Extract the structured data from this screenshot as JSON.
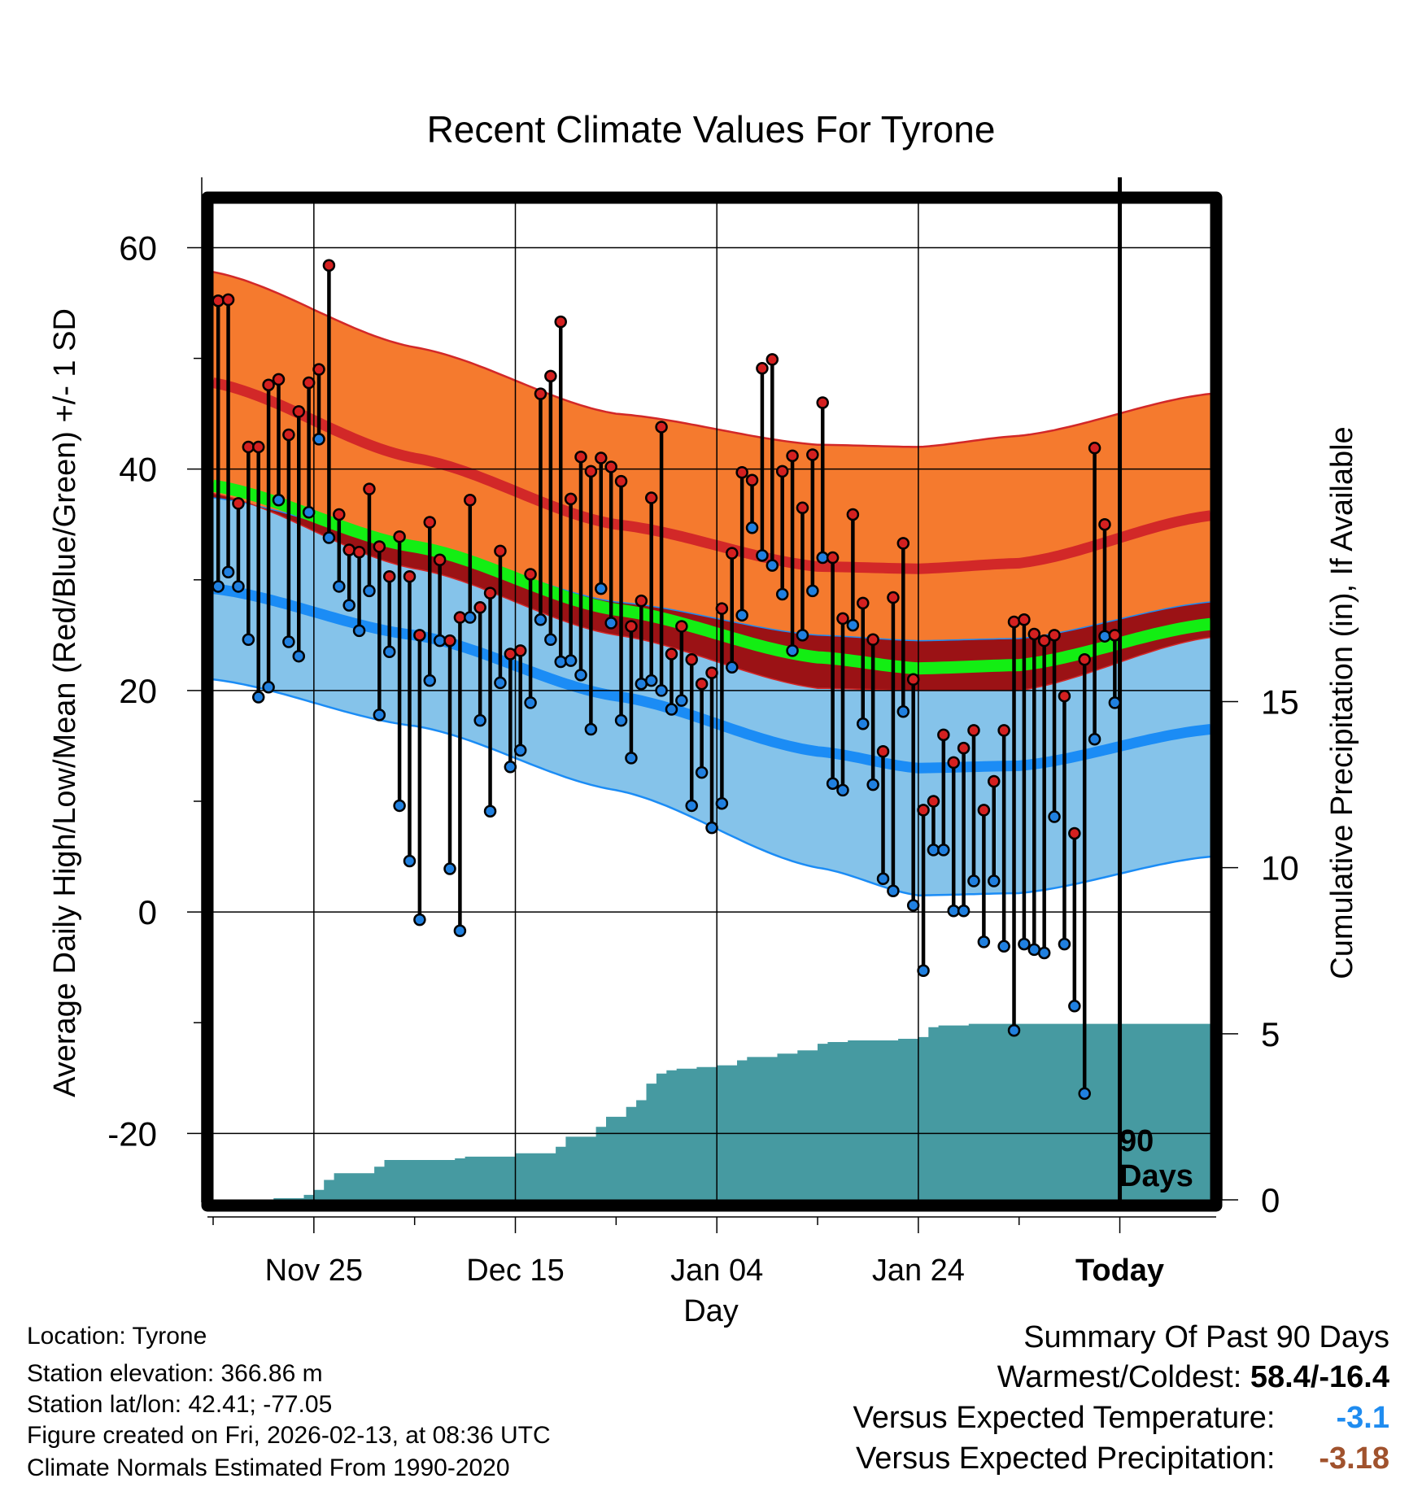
{
  "chart_data": {
    "type": "line",
    "title": "Recent Climate Values For Tyrone",
    "xlabel": "Day",
    "ylabel": "Average Daily High/Low/Mean (Red/Blue/Green) +/- 1 SD",
    "y2label": "Cumulative Precipitation (in), If Available",
    "ylim": [
      -26,
      64
    ],
    "yticks": [
      -20,
      0,
      20,
      40,
      60
    ],
    "yticklabels": [
      "-20",
      "0",
      "20",
      "40",
      "60"
    ],
    "y2lim": [
      0,
      30
    ],
    "y2ticks": [
      0,
      5,
      10,
      15
    ],
    "y2ticklabels": [
      "0",
      "5",
      "10",
      "15"
    ],
    "xlim": [
      0,
      99
    ],
    "xticks": [
      10,
      30,
      50,
      70,
      90
    ],
    "xticklabels": [
      "Nov 25",
      "Dec 15",
      "Jan 04",
      "Jan 24",
      "Today"
    ],
    "today_index": 90,
    "today_annotation": [
      "90",
      "Days"
    ],
    "grid": true,
    "colors": {
      "high_band": "#f57a2e",
      "high_line": "#d22828",
      "mean_band": "#9b1215",
      "mean_line": "#13ee13",
      "low_band": "#85c3ea",
      "low_line": "#1b8cf5",
      "precip": "#469aa1",
      "high_dot": "#d42020",
      "low_dot": "#2080e0",
      "neg_value": "#1f8cf0",
      "precip_value": "#a0522d"
    },
    "normals": {
      "x": [
        0,
        20,
        40,
        60,
        70,
        80,
        99
      ],
      "high_mean": [
        47.8,
        41.0,
        35.0,
        31.2,
        31.0,
        31.5,
        35.8
      ],
      "high_sd": [
        10.0,
        10.0,
        10.0,
        11.0,
        11.0,
        11.5,
        11.0
      ],
      "low_mean": [
        29.2,
        25.0,
        19.5,
        14.5,
        13.0,
        13.2,
        16.5
      ],
      "low_sd": [
        8.2,
        8.2,
        8.5,
        10.5,
        11.5,
        11.5,
        11.5
      ],
      "avg_mean": [
        38.5,
        33.0,
        27.3,
        23.0,
        22.0,
        22.3,
        26.0
      ]
    },
    "observed": {
      "day": [
        0,
        1,
        2,
        3,
        4,
        5,
        6,
        7,
        8,
        9,
        10,
        11,
        12,
        13,
        14,
        15,
        16,
        17,
        18,
        19,
        20,
        21,
        22,
        23,
        24,
        25,
        26,
        27,
        28,
        29,
        30,
        31,
        32,
        33,
        34,
        35,
        36,
        37,
        38,
        39,
        40,
        41,
        42,
        43,
        44,
        45,
        46,
        47,
        48,
        49,
        50,
        51,
        52,
        53,
        54,
        55,
        56,
        57,
        58,
        59,
        60,
        61,
        62,
        63,
        64,
        65,
        66,
        67,
        68,
        69,
        70,
        71,
        72,
        73,
        74,
        75,
        76,
        77,
        78,
        79,
        80,
        81,
        82,
        83,
        84,
        85,
        86,
        87,
        88,
        89
      ],
      "high": [
        55.2,
        55.3,
        36.9,
        42.0,
        42.0,
        47.6,
        48.1,
        43.1,
        45.2,
        47.8,
        49.0,
        58.4,
        35.9,
        32.7,
        32.5,
        38.2,
        33.0,
        30.3,
        33.9,
        30.3,
        25.0,
        35.2,
        31.8,
        24.5,
        26.6,
        37.2,
        27.5,
        28.8,
        32.6,
        23.3,
        23.6,
        30.5,
        46.8,
        48.4,
        53.3,
        37.3,
        41.1,
        39.8,
        41.0,
        40.2,
        38.9,
        25.8,
        28.1,
        37.4,
        43.8,
        23.3,
        25.8,
        22.8,
        20.6,
        21.6,
        27.4,
        32.4,
        39.7,
        39.0,
        49.1,
        49.9,
        39.8,
        41.2,
        36.5,
        41.3,
        46.0,
        32.0,
        26.5,
        35.9,
        27.9,
        24.6,
        14.5,
        28.4,
        33.3,
        21.0,
        9.2,
        10.0,
        16.0,
        13.5,
        14.8,
        16.4,
        9.2,
        11.8,
        16.4,
        26.2,
        26.4,
        25.1,
        24.5,
        25.0,
        19.5,
        7.1,
        22.8,
        41.9,
        35.0,
        25.0
      ],
      "low": [
        29.4,
        30.7,
        29.4,
        24.6,
        19.4,
        20.3,
        37.2,
        24.4,
        23.1,
        36.1,
        42.7,
        33.8,
        29.4,
        27.7,
        25.4,
        29.0,
        17.8,
        23.5,
        9.6,
        4.6,
        -0.7,
        20.9,
        24.5,
        3.9,
        -1.7,
        26.6,
        17.3,
        9.1,
        20.7,
        13.1,
        14.6,
        18.9,
        26.4,
        24.6,
        22.6,
        22.7,
        21.4,
        16.5,
        29.2,
        26.1,
        17.3,
        13.9,
        20.6,
        20.9,
        20.0,
        18.3,
        19.1,
        9.6,
        12.6,
        7.6,
        9.8,
        22.1,
        26.8,
        34.7,
        32.2,
        31.3,
        28.7,
        23.6,
        25.0,
        29.0,
        32.0,
        11.6,
        11.0,
        25.9,
        17.0,
        11.5,
        3.0,
        1.9,
        18.1,
        0.6,
        -5.3,
        5.6,
        5.6,
        0.1,
        0.1,
        2.8,
        -2.7,
        2.8,
        -3.1,
        -10.7,
        -2.9,
        -3.4,
        -3.7,
        8.6,
        -2.9,
        -8.5,
        -16.4,
        15.6,
        24.9,
        18.9
      ]
    },
    "precip_cum": {
      "x": [
        0,
        6,
        9,
        10,
        11,
        12,
        15,
        16,
        17,
        19,
        21,
        22,
        24,
        25,
        27,
        28,
        30,
        34,
        35,
        38,
        39,
        41,
        42,
        43,
        44,
        45,
        46,
        48,
        50,
        52,
        53,
        55,
        56,
        58,
        60,
        61,
        63,
        68,
        70,
        71,
        72,
        75,
        80,
        85,
        90,
        99
      ],
      "y": [
        0.0,
        0.05,
        0.15,
        0.3,
        0.6,
        0.8,
        0.8,
        1.0,
        1.2,
        1.2,
        1.2,
        1.2,
        1.25,
        1.3,
        1.3,
        1.3,
        1.4,
        1.6,
        1.9,
        2.2,
        2.5,
        2.8,
        3.0,
        3.5,
        3.8,
        3.9,
        3.95,
        4.0,
        4.05,
        4.2,
        4.3,
        4.3,
        4.4,
        4.5,
        4.7,
        4.75,
        4.8,
        4.85,
        4.9,
        5.2,
        5.25,
        5.3,
        5.3,
        5.3,
        5.3,
        5.3
      ]
    }
  },
  "footer": {
    "location": "Location: Tyrone",
    "elevation": "Station elevation: 366.86 m",
    "latlon": "Station lat/lon: 42.41; -77.05",
    "created": "Figure created on Fri, 2026-02-13, at 08:36 UTC",
    "normals": "Climate Normals Estimated From 1990-2020"
  },
  "summary": {
    "title": "Summary Of Past 90 Days",
    "warmest_coldest_label": "Warmest/Coldest:",
    "warmest_coldest_value": "58.4/-16.4",
    "temp_label": "Versus Expected Temperature:",
    "temp_value": "-3.1",
    "precip_label": "Versus Expected Precipitation:",
    "precip_value": "-3.18"
  }
}
